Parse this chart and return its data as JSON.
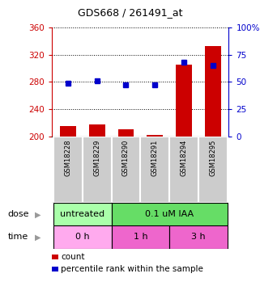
{
  "title": "GDS668 / 261491_at",
  "samples": [
    "GSM18228",
    "GSM18229",
    "GSM18290",
    "GSM18291",
    "GSM18294",
    "GSM18295"
  ],
  "count_values": [
    215,
    218,
    210,
    202,
    305,
    333
  ],
  "count_base": 200,
  "percentile_values": [
    49,
    51,
    47,
    47,
    68,
    65
  ],
  "ylim_left": [
    200,
    360
  ],
  "ylim_right": [
    0,
    100
  ],
  "yticks_left": [
    200,
    240,
    280,
    320,
    360
  ],
  "yticks_right": [
    0,
    25,
    50,
    75,
    100
  ],
  "ytick_labels_right": [
    "0",
    "25",
    "50",
    "75",
    "100%"
  ],
  "bar_color": "#cc0000",
  "dot_color": "#0000cc",
  "dose_labels": [
    "untreated",
    "0.1 uM IAA"
  ],
  "dose_colors": [
    "#aaffaa",
    "#66dd66"
  ],
  "time_labels": [
    "0 h",
    "1 h",
    "3 h"
  ],
  "time_colors": [
    "#ffaaee",
    "#ee66cc",
    "#ee66cc"
  ],
  "sample_bg_color": "#cccccc",
  "left_axis_color": "#cc0000",
  "right_axis_color": "#0000cc",
  "legend_count_color": "#cc0000",
  "legend_pct_color": "#0000cc",
  "legend_count_label": "count",
  "legend_pct_label": "percentile rank within the sample"
}
